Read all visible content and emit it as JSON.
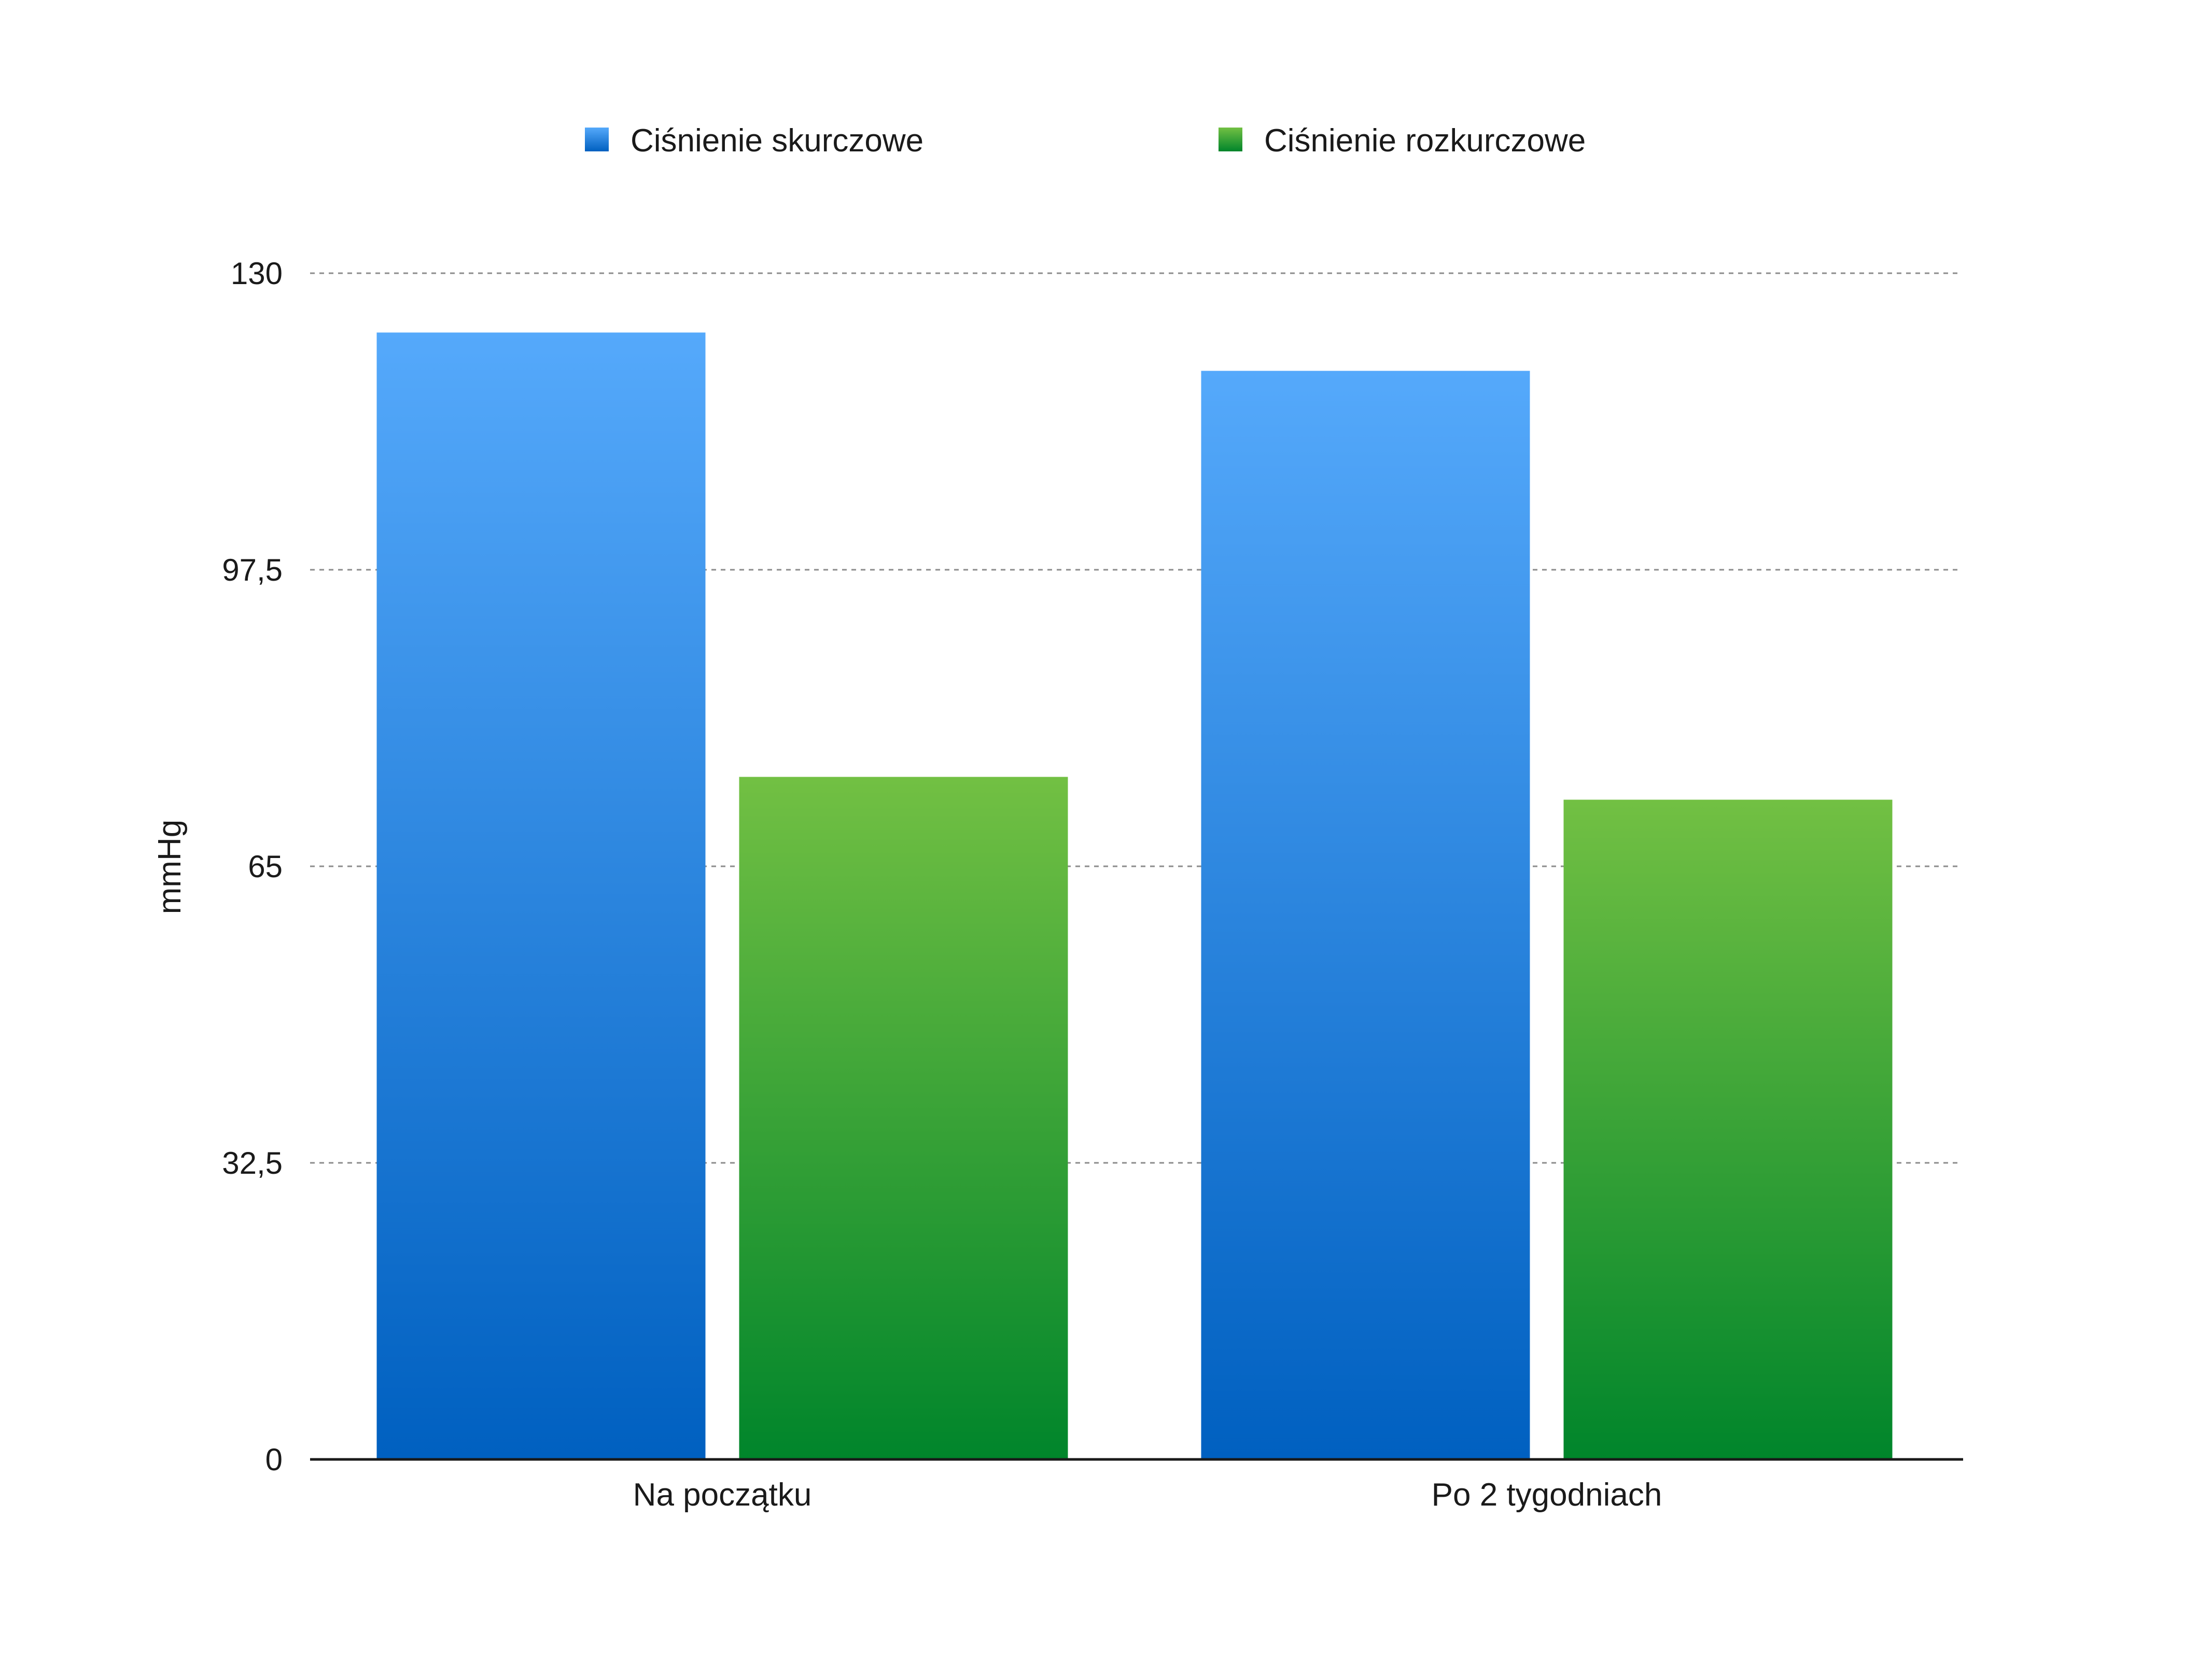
{
  "chart_data": {
    "type": "bar",
    "categories": [
      "Na początku",
      "Po 2 tygodniach"
    ],
    "series": [
      {
        "name": "Ciśnienie skurczowe",
        "values": [
          123.5,
          119.3
        ],
        "color_top": "#55a9fb",
        "color_bottom": "#0060c0"
      },
      {
        "name": "Ciśnienie rozkurczowe",
        "values": [
          74.8,
          72.3
        ],
        "color_top": "#72c043",
        "color_bottom": "#00852b"
      }
    ],
    "ylabel": "mmHg",
    "ylim": [
      0,
      130
    ],
    "yticks": [
      0,
      32.5,
      65,
      97.5,
      130
    ],
    "ytick_labels": [
      "0",
      "32,5",
      "65",
      "97,5",
      "130"
    ],
    "grid": true,
    "legend": "top-center"
  }
}
